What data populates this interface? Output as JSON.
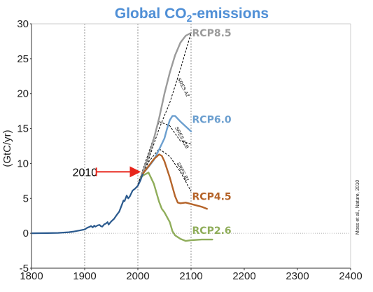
{
  "chart_data": {
    "type": "line",
    "title_main": "Global CO",
    "title_sub": "2",
    "title_tail": "-emissions",
    "ylabel": "(GtC/yr)",
    "xlim": [
      1800,
      2400
    ],
    "ylim": [
      -5,
      30
    ],
    "xticks": [
      1800,
      1900,
      2000,
      2100,
      2200,
      2300,
      2400
    ],
    "yticks": [
      -5,
      0,
      5,
      10,
      15,
      20,
      25,
      30
    ],
    "grid_x": [
      1900,
      2000,
      2100
    ],
    "annotation": {
      "text": "2010",
      "x": 2010,
      "y": 8.8
    },
    "citation": "Moss et al., Nature, 2010",
    "historical": {
      "color": "#2b5a8e",
      "points": [
        [
          1800,
          0
        ],
        [
          1830,
          0.02
        ],
        [
          1850,
          0.05
        ],
        [
          1870,
          0.15
        ],
        [
          1880,
          0.25
        ],
        [
          1890,
          0.4
        ],
        [
          1900,
          0.55
        ],
        [
          1905,
          0.8
        ],
        [
          1910,
          0.95
        ],
        [
          1912,
          1.05
        ],
        [
          1915,
          0.85
        ],
        [
          1918,
          1.1
        ],
        [
          1920,
          0.95
        ],
        [
          1925,
          1.15
        ],
        [
          1928,
          1.2
        ],
        [
          1930,
          1.05
        ],
        [
          1933,
          0.95
        ],
        [
          1937,
          1.3
        ],
        [
          1940,
          1.4
        ],
        [
          1943,
          1.6
        ],
        [
          1945,
          1.25
        ],
        [
          1950,
          1.7
        ],
        [
          1955,
          2.05
        ],
        [
          1960,
          2.6
        ],
        [
          1965,
          3.1
        ],
        [
          1970,
          4.1
        ],
        [
          1973,
          4.7
        ],
        [
          1975,
          4.6
        ],
        [
          1979,
          5.4
        ],
        [
          1982,
          5.0
        ],
        [
          1985,
          5.3
        ],
        [
          1990,
          6.1
        ],
        [
          1995,
          6.4
        ],
        [
          2000,
          6.8
        ],
        [
          2005,
          7.6
        ],
        [
          2008,
          8.3
        ],
        [
          2010,
          8.5
        ]
      ]
    },
    "series": [
      {
        "name": "RCP8.5",
        "color": "#9b9b9b",
        "points": [
          [
            2005,
            7.9
          ],
          [
            2010,
            8.9
          ],
          [
            2020,
            11.0
          ],
          [
            2030,
            13.5
          ],
          [
            2040,
            16.5
          ],
          [
            2050,
            20.0
          ],
          [
            2060,
            23.0
          ],
          [
            2070,
            25.5
          ],
          [
            2080,
            27.3
          ],
          [
            2090,
            28.3
          ],
          [
            2100,
            28.7
          ]
        ]
      },
      {
        "name": "RCP6.0",
        "color": "#6c9fcf",
        "points": [
          [
            2005,
            7.9
          ],
          [
            2010,
            8.6
          ],
          [
            2020,
            9.5
          ],
          [
            2030,
            10.5
          ],
          [
            2040,
            12.0
          ],
          [
            2050,
            13.6
          ],
          [
            2055,
            15.0
          ],
          [
            2060,
            16.2
          ],
          [
            2065,
            16.8
          ],
          [
            2070,
            16.8
          ],
          [
            2080,
            16.0
          ],
          [
            2090,
            15.3
          ],
          [
            2100,
            14.6
          ]
        ]
      },
      {
        "name": "RCP4.5",
        "color": "#b5642a",
        "points": [
          [
            2005,
            7.9
          ],
          [
            2010,
            8.6
          ],
          [
            2020,
            9.6
          ],
          [
            2030,
            10.6
          ],
          [
            2040,
            11.3
          ],
          [
            2045,
            11.1
          ],
          [
            2050,
            10.3
          ],
          [
            2060,
            8.0
          ],
          [
            2070,
            5.3
          ],
          [
            2075,
            4.4
          ],
          [
            2080,
            4.3
          ],
          [
            2090,
            4.4
          ],
          [
            2100,
            4.2
          ],
          [
            2110,
            4.0
          ],
          [
            2120,
            3.8
          ],
          [
            2130,
            3.5
          ]
        ]
      },
      {
        "name": "RCP2.6",
        "color": "#8fad5a",
        "points": [
          [
            2005,
            7.9
          ],
          [
            2010,
            8.3
          ],
          [
            2020,
            8.7
          ],
          [
            2030,
            7.1
          ],
          [
            2040,
            4.5
          ],
          [
            2045,
            3.5
          ],
          [
            2050,
            3.0
          ],
          [
            2060,
            1.6
          ],
          [
            2065,
            0.3
          ],
          [
            2070,
            -0.3
          ],
          [
            2080,
            -0.8
          ],
          [
            2090,
            -1.1
          ],
          [
            2100,
            -1.0
          ],
          [
            2120,
            -0.9
          ],
          [
            2140,
            -0.9
          ]
        ]
      }
    ],
    "sres": [
      {
        "name": "SRES A2",
        "points": [
          [
            2000,
            7.0
          ],
          [
            2020,
            10.5
          ],
          [
            2040,
            15.0
          ],
          [
            2060,
            18.7
          ],
          [
            2080,
            23.5
          ],
          [
            2100,
            28.7
          ]
        ],
        "label": {
          "x": 2083,
          "y": 20.8
        }
      },
      {
        "name": "SRES A1B",
        "points": [
          [
            2000,
            7.0
          ],
          [
            2020,
            11.5
          ],
          [
            2040,
            16.0
          ],
          [
            2060,
            15.4
          ],
          [
            2080,
            13.2
          ],
          [
            2100,
            12.8
          ]
        ],
        "label": {
          "x": 2080,
          "y": 13.6
        }
      },
      {
        "name": "SRES B1",
        "points": [
          [
            2000,
            7.0
          ],
          [
            2020,
            10.2
          ],
          [
            2040,
            12.1
          ],
          [
            2060,
            11.0
          ],
          [
            2080,
            8.8
          ],
          [
            2100,
            6.0
          ]
        ],
        "label": {
          "x": 2082,
          "y": 8.7
        }
      }
    ]
  }
}
